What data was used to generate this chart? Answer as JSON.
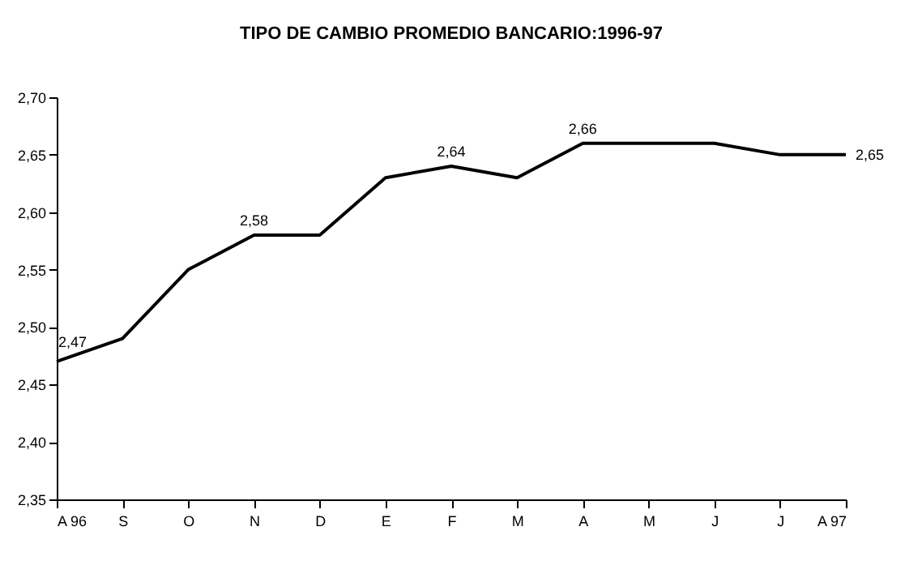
{
  "chart_data": {
    "type": "line",
    "title": "TIPO DE CAMBIO PROMEDIO BANCARIO:1996-97",
    "categories": [
      "A 96",
      "S",
      "O",
      "N",
      "D",
      "E",
      "F",
      "M",
      "A",
      "M",
      "J",
      "J",
      "A 97"
    ],
    "values": [
      2.47,
      2.49,
      2.55,
      2.58,
      2.58,
      2.63,
      2.64,
      2.63,
      2.66,
      2.66,
      2.66,
      2.65,
      2.65
    ],
    "value_labels": [
      "2,47",
      null,
      null,
      "2,58",
      null,
      null,
      "2,64",
      null,
      "2,66",
      null,
      null,
      null,
      "2,65"
    ],
    "color": "#000000",
    "ylim": [
      2.35,
      2.7
    ],
    "yticks": [
      {
        "value": 2.35,
        "label": "2,35"
      },
      {
        "value": 2.4,
        "label": "2,40"
      },
      {
        "value": 2.45,
        "label": "2,45"
      },
      {
        "value": 2.5,
        "label": "2,50"
      },
      {
        "value": 2.55,
        "label": "2,55"
      },
      {
        "value": 2.6,
        "label": "2,60"
      },
      {
        "value": 2.65,
        "label": "2,65"
      },
      {
        "value": 2.7,
        "label": "2,70"
      }
    ],
    "grid": false,
    "legend": false,
    "marker": "none",
    "line_style": "solid"
  }
}
